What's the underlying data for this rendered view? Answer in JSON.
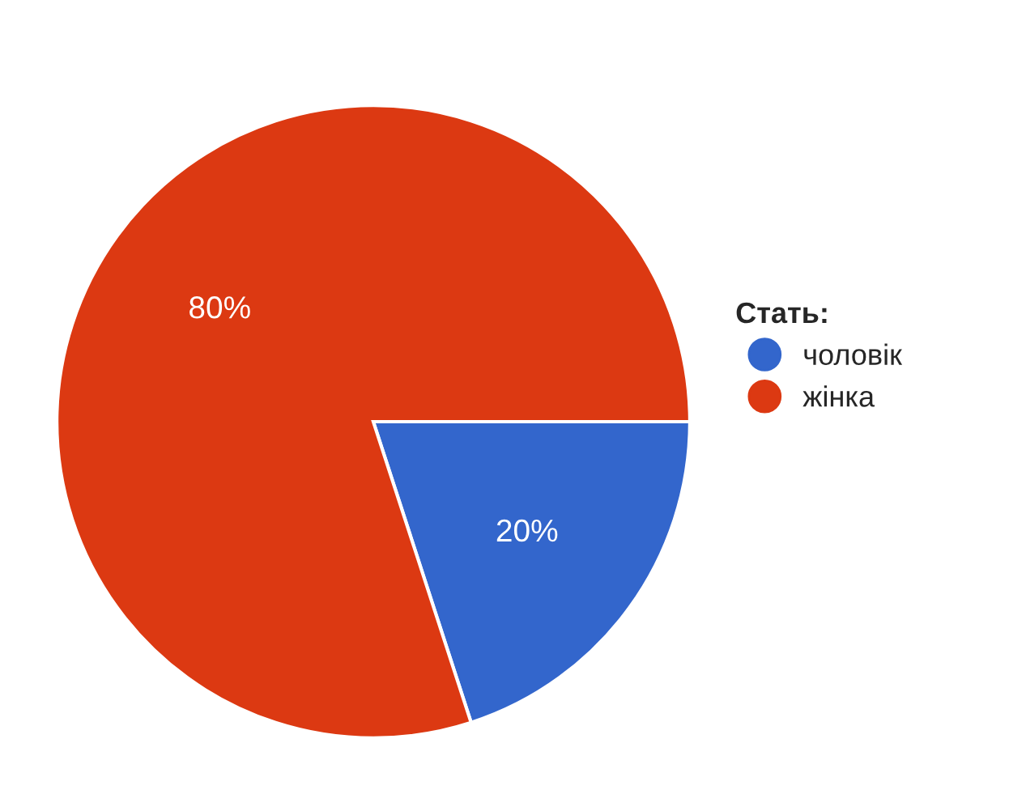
{
  "chart_data": {
    "type": "pie",
    "legend_title": "Стать:",
    "categories": [
      "чоловік",
      "жінка"
    ],
    "values": [
      20,
      80
    ],
    "colors": [
      "#3366cc",
      "#dc3912"
    ],
    "value_labels": [
      "20%",
      "80%"
    ],
    "legend": "right"
  }
}
